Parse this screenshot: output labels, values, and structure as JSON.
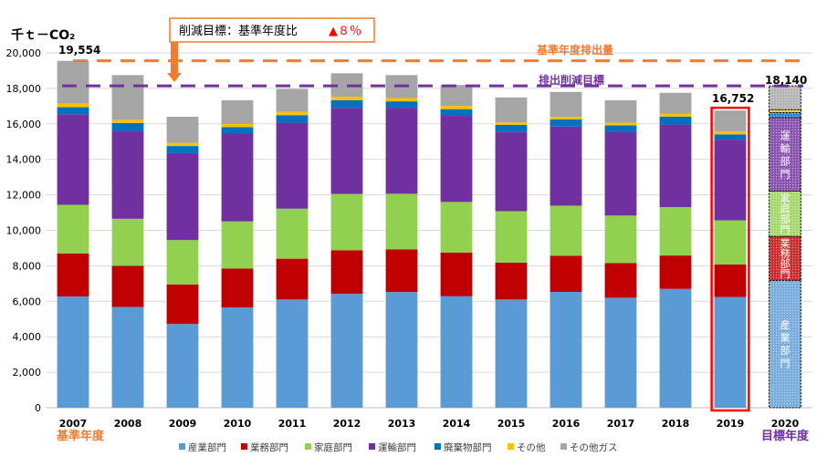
{
  "chart_data": {
    "type": "bar",
    "stacked": true,
    "unit_label": "千ｔ－CO₂",
    "categories": [
      "2007",
      "2008",
      "2009",
      "2010",
      "2011",
      "2012",
      "2013",
      "2014",
      "2015",
      "2016",
      "2017",
      "2018",
      "2019",
      "2020"
    ],
    "series": [
      {
        "name": "産業部門",
        "color": "#5b9bd5",
        "values": [
          6270,
          5680,
          4720,
          5650,
          6100,
          6420,
          6520,
          6280,
          6100,
          6530,
          6200,
          6700,
          6240,
          7180
        ]
      },
      {
        "name": "業務部門",
        "color": "#c00000",
        "values": [
          2420,
          2320,
          2230,
          2200,
          2300,
          2450,
          2400,
          2460,
          2080,
          2030,
          1950,
          1880,
          1830,
          2480
        ]
      },
      {
        "name": "家庭部門",
        "color": "#92d050",
        "values": [
          2750,
          2650,
          2500,
          2650,
          2820,
          3180,
          3140,
          2860,
          2900,
          2830,
          2680,
          2730,
          2490,
          2550
        ]
      },
      {
        "name": "運輸部門",
        "color": "#7030a0",
        "values": [
          5100,
          4950,
          4900,
          4950,
          4850,
          4850,
          4850,
          4850,
          4460,
          4460,
          4700,
          4650,
          4550,
          4140
        ]
      },
      {
        "name": "廃棄物部門",
        "color": "#0070c0",
        "values": [
          400,
          450,
          400,
          360,
          420,
          430,
          360,
          380,
          400,
          400,
          380,
          450,
          300,
          280
        ]
      },
      {
        "name": "その他",
        "color": "#ffc000",
        "values": [
          200,
          180,
          180,
          180,
          180,
          200,
          180,
          180,
          140,
          140,
          160,
          170,
          160,
          170
        ]
      },
      {
        "name": "その他ガス",
        "color": "#a5a5a5",
        "values": [
          2414,
          2520,
          1470,
          1340,
          1300,
          1320,
          1300,
          1180,
          1410,
          1410,
          1260,
          1170,
          1182,
          1340
        ]
      }
    ],
    "ylim": [
      0,
      20000
    ],
    "yticks": [
      "0",
      "2,000",
      "4,000",
      "6,000",
      "8,000",
      "10,000",
      "12,000",
      "14,000",
      "16,000",
      "18,000",
      "20,000"
    ],
    "baseline": {
      "value": 19554,
      "label": "基準年度排出量",
      "value_label": "19,554",
      "color": "#ed7d31"
    },
    "target": {
      "value": 18140,
      "label": "排出削減目標",
      "value_label": "18,140",
      "color": "#7030a0"
    },
    "highlight": {
      "category": "2019",
      "total_label": "16,752",
      "color": "#ff0000"
    },
    "target_bar": {
      "category": "2020",
      "segment_labels": [
        "産業部門",
        "業務部門",
        "家庭部門",
        "運輸部門",
        "",
        "",
        ""
      ]
    },
    "reduction_box": {
      "text": "削減目標：基準年度比",
      "value": "▲８％"
    },
    "base_year_label": "基準年度",
    "target_year_label": "目標年度"
  }
}
